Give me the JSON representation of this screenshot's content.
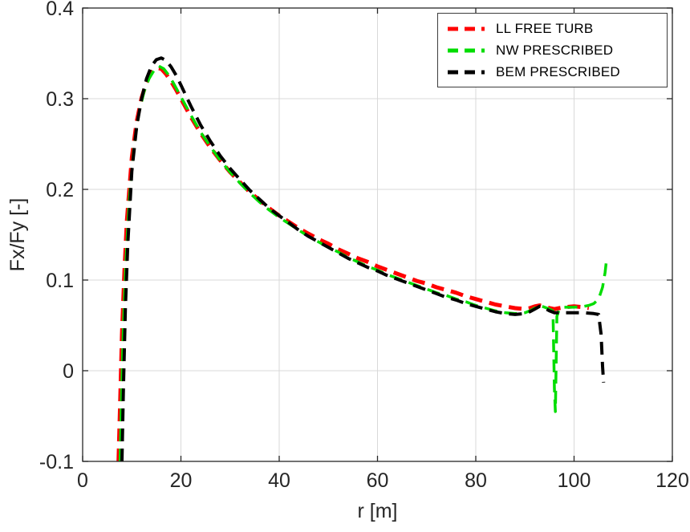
{
  "figure": {
    "background": "#ffffff"
  },
  "chart_data": {
    "type": "line",
    "title": "",
    "xlabel": "r [m]",
    "ylabel": "Fx/Fy [-]",
    "xlim": [
      0,
      120
    ],
    "ylim": [
      -0.1,
      0.4
    ],
    "xticks": [
      0,
      20,
      40,
      60,
      80,
      100,
      120
    ],
    "xtick_labels": [
      "0",
      "20",
      "40",
      "60",
      "80",
      "100",
      "120"
    ],
    "yticks": [
      -0.1,
      0,
      0.1,
      0.2,
      0.3,
      0.4
    ],
    "ytick_labels": [
      "-0.1",
      "0",
      "0.1",
      "0.2",
      "0.3",
      "0.4"
    ],
    "grid": true,
    "grid_color": "#d9d9d9",
    "axis_color": "#262626",
    "legend_position": "top-right",
    "series": [
      {
        "name": "LL FREE TURB",
        "color": "#ff0000",
        "line_style": "dashed",
        "line_width": 5,
        "points": [
          [
            7.3,
            -0.1
          ],
          [
            7.6,
            -0.04
          ],
          [
            8,
            0.04
          ],
          [
            8.5,
            0.11
          ],
          [
            9,
            0.165
          ],
          [
            10,
            0.235
          ],
          [
            11,
            0.275
          ],
          [
            12,
            0.301
          ],
          [
            13,
            0.318
          ],
          [
            14,
            0.329
          ],
          [
            15,
            0.334
          ],
          [
            16,
            0.333
          ],
          [
            17,
            0.327
          ],
          [
            18,
            0.319
          ],
          [
            19,
            0.31
          ],
          [
            20,
            0.3
          ],
          [
            22,
            0.28
          ],
          [
            24,
            0.262
          ],
          [
            26,
            0.246
          ],
          [
            28,
            0.232
          ],
          [
            30,
            0.219
          ],
          [
            32,
            0.208
          ],
          [
            34,
            0.197
          ],
          [
            36,
            0.188
          ],
          [
            38,
            0.179
          ],
          [
            40,
            0.171
          ],
          [
            42,
            0.164
          ],
          [
            44,
            0.157
          ],
          [
            46,
            0.151
          ],
          [
            48,
            0.145
          ],
          [
            50,
            0.14
          ],
          [
            52,
            0.134
          ],
          [
            54,
            0.129
          ],
          [
            56,
            0.124
          ],
          [
            58,
            0.12
          ],
          [
            60,
            0.115
          ],
          [
            62,
            0.111
          ],
          [
            64,
            0.107
          ],
          [
            66,
            0.103
          ],
          [
            68,
            0.099
          ],
          [
            70,
            0.096
          ],
          [
            72,
            0.092
          ],
          [
            74,
            0.089
          ],
          [
            76,
            0.086
          ],
          [
            78,
            0.082
          ],
          [
            80,
            0.079
          ],
          [
            82,
            0.076
          ],
          [
            84,
            0.073
          ],
          [
            86,
            0.071
          ],
          [
            88,
            0.069
          ],
          [
            90,
            0.068
          ],
          [
            91,
            0.069
          ],
          [
            92,
            0.071
          ],
          [
            93,
            0.072
          ],
          [
            94,
            0.071
          ],
          [
            95,
            0.069
          ],
          [
            96,
            0.068
          ],
          [
            97,
            0.069
          ],
          [
            98,
            0.07
          ],
          [
            100,
            0.071
          ],
          [
            102,
            0.07
          ],
          [
            103,
            0.069
          ]
        ]
      },
      {
        "name": "NW PRESCRIBED",
        "color": "#00dd00",
        "line_style": "dashed",
        "line_width": 3.5,
        "points": [
          [
            7.6,
            -0.1
          ],
          [
            7.9,
            -0.03
          ],
          [
            8.3,
            0.05
          ],
          [
            8.8,
            0.12
          ],
          [
            9.5,
            0.19
          ],
          [
            10.5,
            0.25
          ],
          [
            11.5,
            0.285
          ],
          [
            12.5,
            0.308
          ],
          [
            13.5,
            0.322
          ],
          [
            14.5,
            0.331
          ],
          [
            15.5,
            0.336
          ],
          [
            16.5,
            0.333
          ],
          [
            17.5,
            0.326
          ],
          [
            18.5,
            0.317
          ],
          [
            20,
            0.302
          ],
          [
            22,
            0.282
          ],
          [
            24,
            0.263
          ],
          [
            26,
            0.247
          ],
          [
            28,
            0.232
          ],
          [
            30,
            0.219
          ],
          [
            32,
            0.207
          ],
          [
            34,
            0.196
          ],
          [
            36,
            0.186
          ],
          [
            38,
            0.177
          ],
          [
            40,
            0.169
          ],
          [
            42,
            0.162
          ],
          [
            44,
            0.155
          ],
          [
            46,
            0.148
          ],
          [
            48,
            0.142
          ],
          [
            50,
            0.136
          ],
          [
            52,
            0.131
          ],
          [
            54,
            0.125
          ],
          [
            56,
            0.12
          ],
          [
            58,
            0.115
          ],
          [
            60,
            0.111
          ],
          [
            62,
            0.106
          ],
          [
            64,
            0.102
          ],
          [
            66,
            0.098
          ],
          [
            68,
            0.094
          ],
          [
            70,
            0.09
          ],
          [
            72,
            0.086
          ],
          [
            74,
            0.083
          ],
          [
            76,
            0.079
          ],
          [
            78,
            0.076
          ],
          [
            80,
            0.072
          ],
          [
            82,
            0.069
          ],
          [
            84,
            0.066
          ],
          [
            86,
            0.064
          ],
          [
            88,
            0.063
          ],
          [
            90,
            0.064
          ],
          [
            91,
            0.066
          ],
          [
            92,
            0.069
          ],
          [
            93,
            0.072
          ],
          [
            94,
            0.07
          ],
          [
            95,
            0.068
          ],
          [
            95.7,
            0.066
          ],
          [
            96,
            -0.02
          ],
          [
            96.2,
            -0.045
          ],
          [
            96.5,
            0.06
          ],
          [
            97,
            0.068
          ],
          [
            98,
            0.07
          ],
          [
            100,
            0.07
          ],
          [
            102,
            0.071
          ],
          [
            103,
            0.072
          ],
          [
            104,
            0.074
          ],
          [
            105,
            0.079
          ],
          [
            105.8,
            0.092
          ],
          [
            106.3,
            0.108
          ],
          [
            106.6,
            0.122
          ]
        ]
      },
      {
        "name": "BEM PRESCRIBED",
        "color": "#000000",
        "line_style": "dashed",
        "line_width": 4,
        "points": [
          [
            8,
            -0.1
          ],
          [
            8.3,
            -0.02
          ],
          [
            8.7,
            0.07
          ],
          [
            9.2,
            0.14
          ],
          [
            10,
            0.22
          ],
          [
            11,
            0.27
          ],
          [
            12,
            0.3
          ],
          [
            13,
            0.322
          ],
          [
            14,
            0.336
          ],
          [
            15,
            0.343
          ],
          [
            16,
            0.345
          ],
          [
            17,
            0.342
          ],
          [
            18,
            0.335
          ],
          [
            19,
            0.326
          ],
          [
            20,
            0.315
          ],
          [
            22,
            0.292
          ],
          [
            24,
            0.271
          ],
          [
            26,
            0.253
          ],
          [
            28,
            0.237
          ],
          [
            30,
            0.223
          ],
          [
            32,
            0.211
          ],
          [
            34,
            0.199
          ],
          [
            36,
            0.189
          ],
          [
            38,
            0.179
          ],
          [
            40,
            0.171
          ],
          [
            42,
            0.163
          ],
          [
            44,
            0.155
          ],
          [
            46,
            0.148
          ],
          [
            48,
            0.142
          ],
          [
            50,
            0.136
          ],
          [
            52,
            0.13
          ],
          [
            54,
            0.124
          ],
          [
            56,
            0.119
          ],
          [
            58,
            0.114
          ],
          [
            60,
            0.11
          ],
          [
            62,
            0.105
          ],
          [
            64,
            0.101
          ],
          [
            66,
            0.097
          ],
          [
            68,
            0.093
          ],
          [
            70,
            0.089
          ],
          [
            72,
            0.085
          ],
          [
            74,
            0.081
          ],
          [
            76,
            0.078
          ],
          [
            78,
            0.074
          ],
          [
            80,
            0.071
          ],
          [
            82,
            0.068
          ],
          [
            84,
            0.065
          ],
          [
            86,
            0.063
          ],
          [
            88,
            0.062
          ],
          [
            90,
            0.063
          ],
          [
            91,
            0.065
          ],
          [
            92,
            0.068
          ],
          [
            93,
            0.071
          ],
          [
            94,
            0.069
          ],
          [
            95,
            0.066
          ],
          [
            96,
            0.064
          ],
          [
            98,
            0.064
          ],
          [
            100,
            0.064
          ],
          [
            102,
            0.064
          ],
          [
            104,
            0.063
          ],
          [
            105,
            0.062
          ],
          [
            105.5,
            0.04
          ],
          [
            105.8,
            0.005
          ],
          [
            106,
            -0.013
          ]
        ]
      }
    ]
  }
}
